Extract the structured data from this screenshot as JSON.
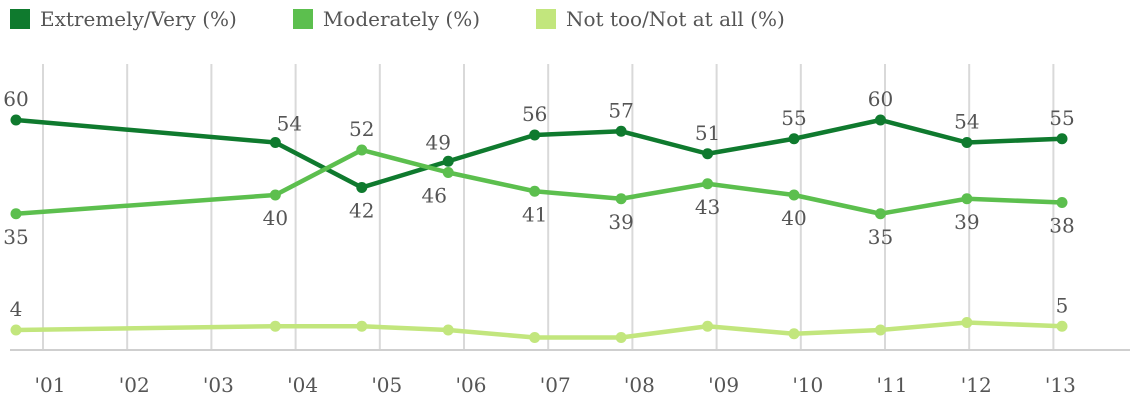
{
  "chart_data": {
    "type": "line",
    "title": "",
    "xlabel": "",
    "ylabel": "",
    "grid": true,
    "legend_position": "top-left",
    "tick_labels": [
      "'01",
      "'02",
      "'03",
      "'04",
      "'05",
      "'06",
      "'07",
      "'08",
      "'09",
      "'10",
      "'11",
      "'12",
      "'13"
    ],
    "ylim": [
      0,
      70
    ],
    "series": [
      {
        "name": "Extremely/Very (%)",
        "color": "#0f7a2e",
        "x": [
          2001.0,
          2004.0,
          2005.0,
          2006.0,
          2007.0,
          2008.0,
          2009.0,
          2010.0,
          2011.0,
          2012.0,
          2013.1
        ],
        "values": [
          60,
          54,
          42,
          49,
          56,
          57,
          51,
          55,
          60,
          54,
          55
        ]
      },
      {
        "name": "Moderately (%)",
        "color": "#5cbf4e",
        "x": [
          2001.0,
          2004.0,
          2005.0,
          2006.0,
          2007.0,
          2008.0,
          2009.0,
          2010.0,
          2011.0,
          2012.0,
          2013.1
        ],
        "values": [
          35,
          40,
          52,
          46,
          41,
          39,
          43,
          40,
          35,
          39,
          38
        ]
      },
      {
        "name": "Not too/Not at all (%)",
        "color": "#c2e67d",
        "x": [
          2001.0,
          2004.0,
          2005.0,
          2006.0,
          2007.0,
          2008.0,
          2009.0,
          2010.0,
          2011.0,
          2012.0,
          2013.1
        ],
        "values": [
          4,
          5,
          5,
          4,
          2,
          2,
          5,
          3,
          4,
          6,
          5
        ]
      }
    ],
    "data_labels": [
      {
        "series": 0,
        "index": 0,
        "text": "60",
        "pos": "above"
      },
      {
        "series": 0,
        "index": 1,
        "text": "54",
        "pos": "above-right"
      },
      {
        "series": 0,
        "index": 2,
        "text": "42",
        "pos": "below"
      },
      {
        "series": 0,
        "index": 3,
        "text": "49",
        "pos": "above-left"
      },
      {
        "series": 0,
        "index": 4,
        "text": "56",
        "pos": "above"
      },
      {
        "series": 0,
        "index": 5,
        "text": "57",
        "pos": "above"
      },
      {
        "series": 0,
        "index": 6,
        "text": "51",
        "pos": "above"
      },
      {
        "series": 0,
        "index": 7,
        "text": "55",
        "pos": "above"
      },
      {
        "series": 0,
        "index": 8,
        "text": "60",
        "pos": "above"
      },
      {
        "series": 0,
        "index": 9,
        "text": "54",
        "pos": "above"
      },
      {
        "series": 0,
        "index": 10,
        "text": "55",
        "pos": "above"
      },
      {
        "series": 1,
        "index": 0,
        "text": "35",
        "pos": "below"
      },
      {
        "series": 1,
        "index": 1,
        "text": "40",
        "pos": "below"
      },
      {
        "series": 1,
        "index": 2,
        "text": "52",
        "pos": "above"
      },
      {
        "series": 1,
        "index": 3,
        "text": "46",
        "pos": "below-left"
      },
      {
        "series": 1,
        "index": 4,
        "text": "41",
        "pos": "below"
      },
      {
        "series": 1,
        "index": 5,
        "text": "39",
        "pos": "below"
      },
      {
        "series": 1,
        "index": 6,
        "text": "43",
        "pos": "below"
      },
      {
        "series": 1,
        "index": 7,
        "text": "40",
        "pos": "below"
      },
      {
        "series": 1,
        "index": 8,
        "text": "35",
        "pos": "below"
      },
      {
        "series": 1,
        "index": 9,
        "text": "39",
        "pos": "below"
      },
      {
        "series": 1,
        "index": 10,
        "text": "38",
        "pos": "below"
      },
      {
        "series": 2,
        "index": 0,
        "text": "4",
        "pos": "above"
      },
      {
        "series": 2,
        "index": 10,
        "text": "5",
        "pos": "above"
      }
    ]
  }
}
